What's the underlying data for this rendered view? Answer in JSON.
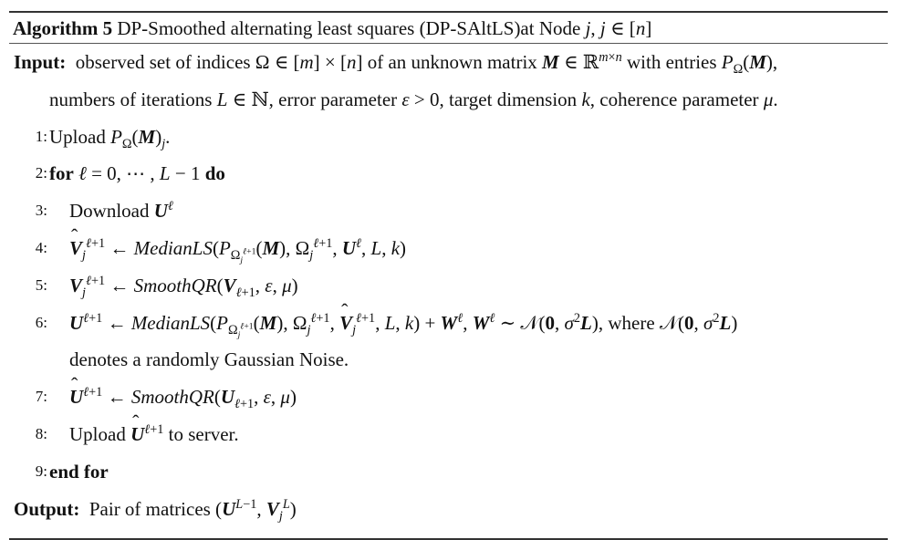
{
  "algorithm": {
    "label": "Algorithm 5",
    "title": "DP-Smoothed alternating least squares (DP-SAltLS)at Node",
    "node_spec": "j, j ∈ [n]"
  },
  "input": {
    "label": "Input:",
    "line1": "observed set of indices Ω ∈ [m] × [n] of an unknown matrix M ∈ ℝ^{m×n} with entries P_Ω(M),",
    "line2": "numbers of iterations L ∈ ℕ, error parameter ε > 0, target dimension k, coherence parameter μ."
  },
  "steps": [
    {
      "num": "1:",
      "text": "Upload P_Ω(M)_j."
    },
    {
      "num": "2:",
      "text": "for ℓ = 0, ⋯ , L − 1 do"
    },
    {
      "num": "3:",
      "text": "Download U^ℓ"
    },
    {
      "num": "4:",
      "text": "V̂_j^{ℓ+1} ← MedianLS(P_{Ω_j^{ℓ+1}}(M), Ω_j^{ℓ+1}, U^ℓ, L, k)"
    },
    {
      "num": "5:",
      "text": "V_j^{ℓ+1} ← SmoothQR(V_{ℓ+1}, ε, μ)"
    },
    {
      "num": "6:",
      "text": "U^{ℓ+1} ← MedianLS(P_{Ω_j^{ℓ+1}}(M), Ω_j^{ℓ+1}, V̂_j^{ℓ+1}, L, k) + W^ℓ, W^ℓ ∼ 𝒩(0, σ²L), where 𝒩(0, σ²L)",
      "continuation": "denotes a randomly Gaussian Noise."
    },
    {
      "num": "7:",
      "text": "Û^{ℓ+1} ← SmoothQR(U_{ℓ+1}, ε, μ)"
    },
    {
      "num": "8:",
      "text": "Upload Û^{ℓ+1} to server."
    },
    {
      "num": "9:",
      "text": "end for"
    }
  ],
  "output": {
    "label": "Output:",
    "text": "Pair of matrices (U^{L−1}, V_j^L)"
  }
}
